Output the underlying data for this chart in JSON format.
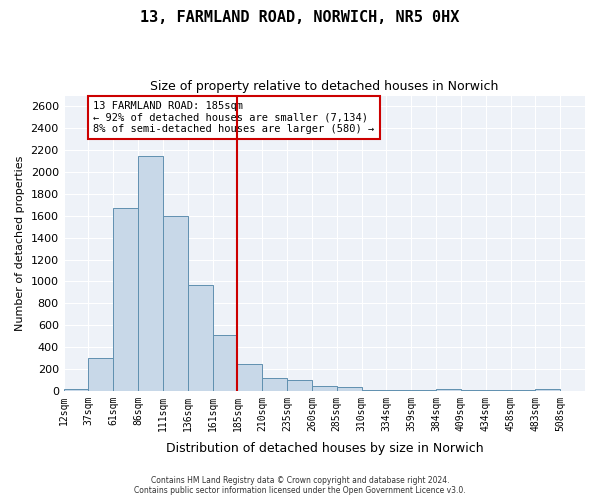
{
  "title": "13, FARMLAND ROAD, NORWICH, NR5 0HX",
  "subtitle": "Size of property relative to detached houses in Norwich",
  "xlabel": "Distribution of detached houses by size in Norwich",
  "ylabel": "Number of detached properties",
  "bar_color": "#c8d8e8",
  "bar_edge_color": "#6090b0",
  "marker_line_color": "#cc0000",
  "annotation_line1": "13 FARMLAND ROAD: 185sqm",
  "annotation_line2": "← 92% of detached houses are smaller (7,134)",
  "annotation_line3": "8% of semi-detached houses are larger (580) →",
  "footer1": "Contains HM Land Registry data © Crown copyright and database right 2024.",
  "footer2": "Contains public sector information licensed under the Open Government Licence v3.0.",
  "bin_labels": [
    "12sqm",
    "37sqm",
    "61sqm",
    "86sqm",
    "111sqm",
    "136sqm",
    "161sqm",
    "185sqm",
    "210sqm",
    "235sqm",
    "260sqm",
    "285sqm",
    "310sqm",
    "334sqm",
    "359sqm",
    "384sqm",
    "409sqm",
    "434sqm",
    "458sqm",
    "483sqm",
    "508sqm"
  ],
  "counts": [
    20,
    300,
    1670,
    2150,
    1600,
    970,
    510,
    245,
    120,
    100,
    45,
    30,
    10,
    5,
    5,
    20,
    5,
    5,
    5,
    20,
    0
  ],
  "marker_index": 7,
  "ylim": [
    0,
    2700
  ],
  "yticks": [
    0,
    200,
    400,
    600,
    800,
    1000,
    1200,
    1400,
    1600,
    1800,
    2000,
    2200,
    2400,
    2600
  ],
  "background_color": "#eef2f8",
  "fig_background": "#ffffff"
}
